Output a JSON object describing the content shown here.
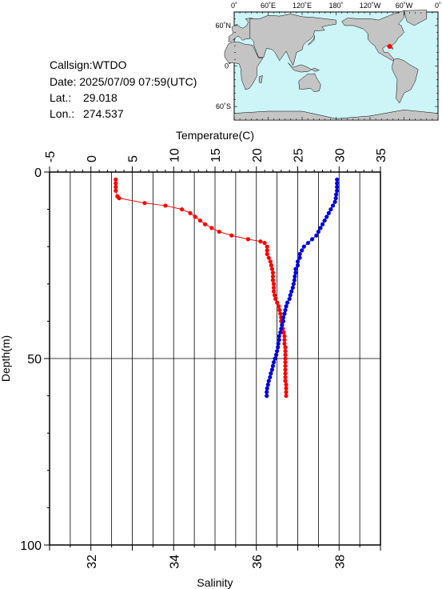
{
  "station": {
    "callsign_line": "Callsign:WTDO",
    "date_line": "Date:  2025/07/09 07:59(UTC)",
    "lat_label": "Lat.:",
    "lat_value": "29.018",
    "lon_label": "Lon.:",
    "lon_value": "274.537"
  },
  "map": {
    "ocean_color": "#cdf5f8",
    "land_color": "#c4c4c4",
    "marker_color": "#ff0000",
    "marker": {
      "lat": 29.018,
      "lon": 274.537
    },
    "top_labels": [
      "0˚",
      "60˚E",
      "120˚E",
      "180˚",
      "120˚W",
      "60˚W",
      "0˚"
    ],
    "left_labels": [
      "60˚N",
      "0˚",
      "60˚S"
    ]
  },
  "chart_data": {
    "type": "line",
    "xlabel_top": "Temperature(C)",
    "xlabel_bottom": "Salinity",
    "ylabel": "Depth(m)",
    "temperature_range": [
      -5,
      35
    ],
    "salinity_range": [
      31,
      39
    ],
    "depth_range": [
      0,
      100
    ],
    "grid": true,
    "temperature_ticks": [
      "-5",
      "0",
      "5",
      "10",
      "15",
      "20",
      "25",
      "30",
      "35"
    ],
    "salinity_ticks": [
      "32",
      "34",
      "36",
      "38"
    ],
    "depth_ticks": [
      "0",
      "50",
      "100"
    ],
    "series": [
      {
        "color": "#ff0000",
        "axis": "temperature",
        "points": [
          [
            3.0,
            2.0
          ],
          [
            3.0,
            3.0
          ],
          [
            3.0,
            4.0
          ],
          [
            3.0,
            5.0
          ],
          [
            3.2,
            6.5
          ],
          [
            3.4,
            7.0
          ],
          [
            6.5,
            8.3
          ],
          [
            9.0,
            9.0
          ],
          [
            11.0,
            10.0
          ],
          [
            12.0,
            11.0
          ],
          [
            12.6,
            12.0
          ],
          [
            13.2,
            13.0
          ],
          [
            13.8,
            14.0
          ],
          [
            14.6,
            15.0
          ],
          [
            15.5,
            16.0
          ],
          [
            17.0,
            17.0
          ],
          [
            19.0,
            18.0
          ],
          [
            20.5,
            18.6
          ],
          [
            21.0,
            19.0
          ],
          [
            21.3,
            20.0
          ],
          [
            21.3,
            21.0
          ],
          [
            21.3,
            22.0
          ],
          [
            21.5,
            23.0
          ],
          [
            21.7,
            24.0
          ],
          [
            21.8,
            25.0
          ],
          [
            21.9,
            26.0
          ],
          [
            22.0,
            27.0
          ],
          [
            22.0,
            28.0
          ],
          [
            22.0,
            29.0
          ],
          [
            22.1,
            30.0
          ],
          [
            22.1,
            31.0
          ],
          [
            22.1,
            32.0
          ],
          [
            22.2,
            33.0
          ],
          [
            22.3,
            34.0
          ],
          [
            22.5,
            35.0
          ],
          [
            22.7,
            36.0
          ],
          [
            22.8,
            37.0
          ],
          [
            22.9,
            38.0
          ],
          [
            23.0,
            39.0
          ],
          [
            23.0,
            40.0
          ],
          [
            23.1,
            41.0
          ],
          [
            23.2,
            42.0
          ],
          [
            23.3,
            43.0
          ],
          [
            23.4,
            44.0
          ],
          [
            23.4,
            45.0
          ],
          [
            23.4,
            46.0
          ],
          [
            23.5,
            47.0
          ],
          [
            23.5,
            48.0
          ],
          [
            23.5,
            49.0
          ],
          [
            23.5,
            50.0
          ],
          [
            23.5,
            51.0
          ],
          [
            23.5,
            52.0
          ],
          [
            23.5,
            53.0
          ],
          [
            23.5,
            54.0
          ],
          [
            23.5,
            55.0
          ],
          [
            23.5,
            56.0
          ],
          [
            23.6,
            57.0
          ],
          [
            23.6,
            58.0
          ],
          [
            23.6,
            59.0
          ],
          [
            23.6,
            60.0
          ]
        ]
      },
      {
        "color": "#0000dd",
        "axis": "salinity",
        "points": [
          [
            37.95,
            2.0
          ],
          [
            37.95,
            3.0
          ],
          [
            37.95,
            4.0
          ],
          [
            37.95,
            5.0
          ],
          [
            37.93,
            6.0
          ],
          [
            37.92,
            7.0
          ],
          [
            37.9,
            8.0
          ],
          [
            37.85,
            9.0
          ],
          [
            37.8,
            10.0
          ],
          [
            37.75,
            11.0
          ],
          [
            37.7,
            12.0
          ],
          [
            37.65,
            13.0
          ],
          [
            37.6,
            14.0
          ],
          [
            37.55,
            15.0
          ],
          [
            37.5,
            16.0
          ],
          [
            37.45,
            17.0
          ],
          [
            37.35,
            18.0
          ],
          [
            37.25,
            19.0
          ],
          [
            37.15,
            20.0
          ],
          [
            37.1,
            21.0
          ],
          [
            37.05,
            22.0
          ],
          [
            37.05,
            23.0
          ],
          [
            37.0,
            24.0
          ],
          [
            37.0,
            25.0
          ],
          [
            36.95,
            26.0
          ],
          [
            36.95,
            27.0
          ],
          [
            36.93,
            28.0
          ],
          [
            36.92,
            29.0
          ],
          [
            36.9,
            30.0
          ],
          [
            36.88,
            31.0
          ],
          [
            36.85,
            32.0
          ],
          [
            36.82,
            33.0
          ],
          [
            36.8,
            34.0
          ],
          [
            36.75,
            35.0
          ],
          [
            36.72,
            36.0
          ],
          [
            36.7,
            37.0
          ],
          [
            36.68,
            38.0
          ],
          [
            36.65,
            39.0
          ],
          [
            36.65,
            40.0
          ],
          [
            36.62,
            41.0
          ],
          [
            36.6,
            42.0
          ],
          [
            36.58,
            43.0
          ],
          [
            36.55,
            44.0
          ],
          [
            36.55,
            45.0
          ],
          [
            36.53,
            46.0
          ],
          [
            36.52,
            47.0
          ],
          [
            36.5,
            48.0
          ],
          [
            36.48,
            49.0
          ],
          [
            36.45,
            50.0
          ],
          [
            36.42,
            51.0
          ],
          [
            36.4,
            52.0
          ],
          [
            36.38,
            53.0
          ],
          [
            36.35,
            54.0
          ],
          [
            36.33,
            55.0
          ],
          [
            36.3,
            56.0
          ],
          [
            36.28,
            57.0
          ],
          [
            36.26,
            58.0
          ],
          [
            36.25,
            59.0
          ],
          [
            36.25,
            60.0
          ]
        ]
      }
    ]
  }
}
